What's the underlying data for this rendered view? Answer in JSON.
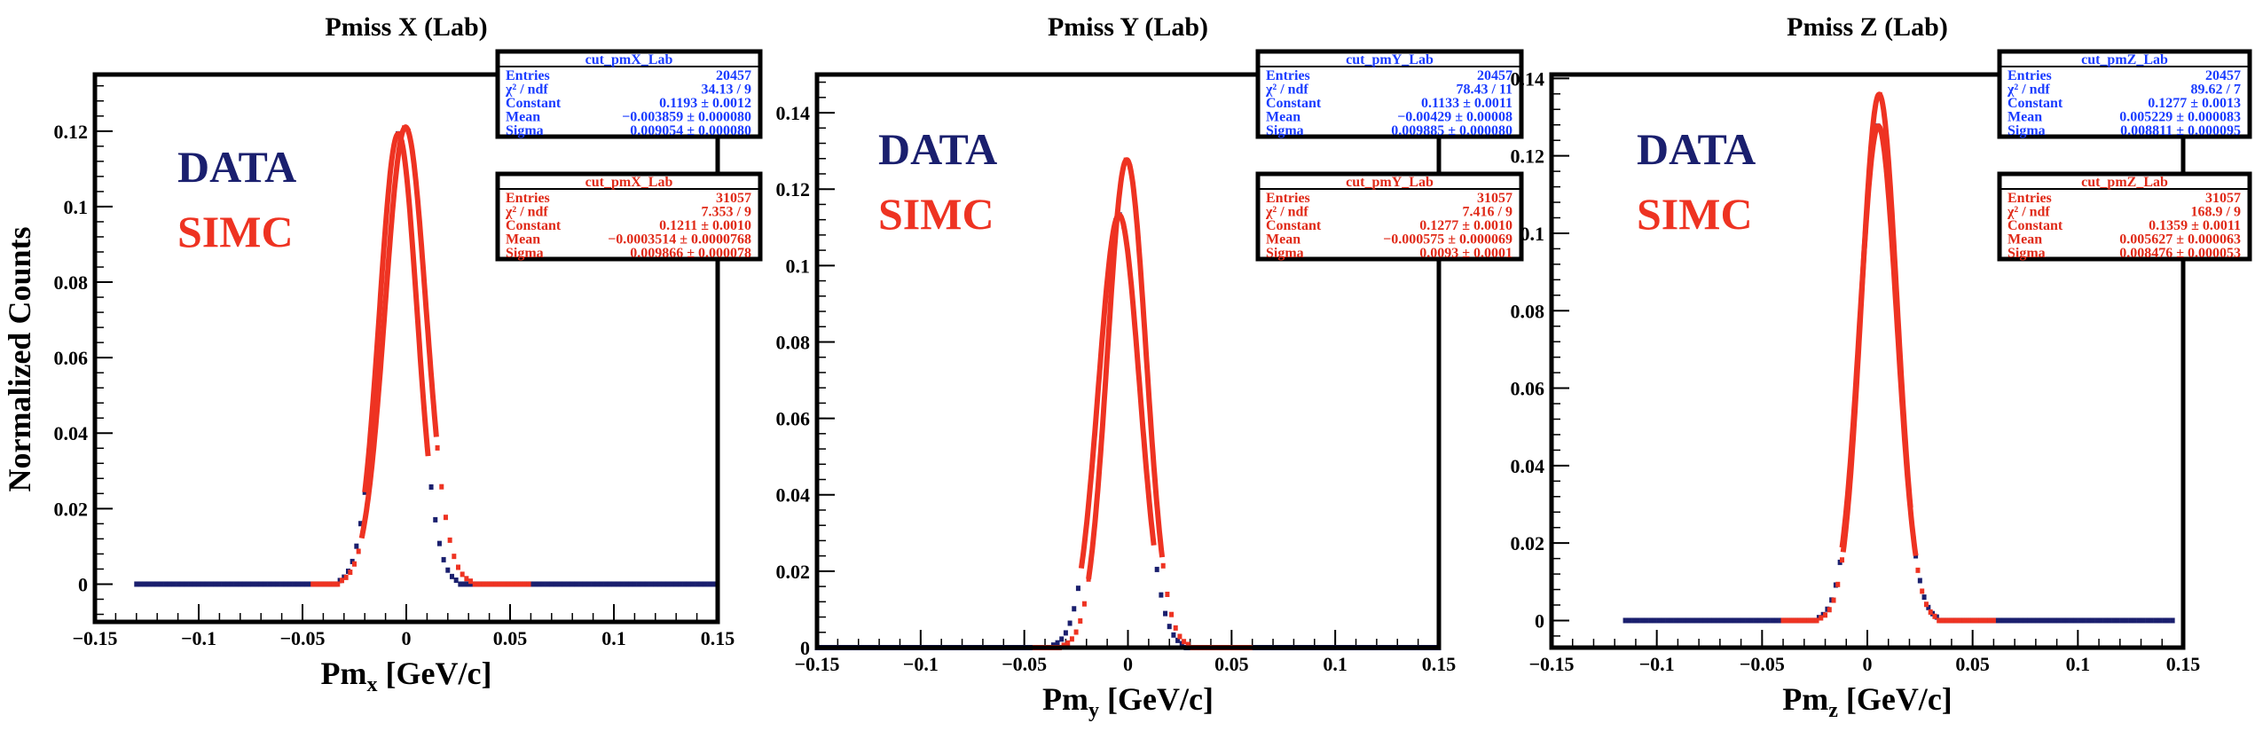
{
  "ylabel": "Normalized Counts",
  "colors": {
    "data": "#1a1f6e",
    "simc": "#ee3322",
    "frame": "#000000"
  },
  "chart_data": [
    {
      "type": "scatter",
      "title": "Pmiss X (Lab)",
      "xlabel_main": "Pm",
      "xlabel_sub": "x",
      "xlabel_unit": "[GeV/c]",
      "xlim": [
        -0.15,
        0.15
      ],
      "ylim": [
        -0.01,
        0.135
      ],
      "xticks": [
        -0.15,
        -0.1,
        -0.05,
        0,
        0.05,
        0.1,
        0.15
      ],
      "xtick_labels": [
        "−0.15",
        "−0.1",
        "−0.05",
        "0",
        "0.05",
        "0.1",
        "0.15"
      ],
      "yticks": [
        0,
        0.02,
        0.04,
        0.06,
        0.08,
        0.1,
        0.12
      ],
      "ytick_labels": [
        "0",
        "0.02",
        "0.04",
        "0.06",
        "0.08",
        "0.1",
        "0.12"
      ],
      "legend": [
        "DATA",
        "SIMC"
      ],
      "series": [
        {
          "name": "DATA",
          "mean": -0.003859,
          "sigma": 0.009054,
          "constant": 0.1193,
          "x_start": -0.13,
          "x_end": 0.15,
          "fit_range": [
            -0.02,
            0.0105
          ]
        },
        {
          "name": "SIMC",
          "mean": -0.0003514,
          "sigma": 0.009866,
          "constant": 0.1211,
          "x_start": -0.045,
          "x_end": 0.06,
          "fit_range": [
            -0.0215,
            0.0145
          ]
        }
      ],
      "stats": [
        {
          "name": "cut_pmX_Lab",
          "rows": [
            {
              "label": "Entries",
              "value": "20457"
            },
            {
              "label": "χ² / ndf",
              "value": "34.13 / 9"
            },
            {
              "label": "Constant",
              "value": "0.1193 ± 0.0012"
            },
            {
              "label": "Mean",
              "value": "−0.003859 ± 0.000080"
            },
            {
              "label": "Sigma",
              "value": "0.009054 ± 0.000080"
            }
          ]
        },
        {
          "name": "cut_pmX_Lab",
          "rows": [
            {
              "label": "Entries",
              "value": "31057"
            },
            {
              "label": "χ² / ndf",
              "value": "7.353 / 9"
            },
            {
              "label": "Constant",
              "value": "0.1211 ± 0.0010"
            },
            {
              "label": "Mean",
              "value": "−0.0003514 ± 0.0000768"
            },
            {
              "label": "Sigma",
              "value": "0.009866 ± 0.000078"
            }
          ]
        }
      ]
    },
    {
      "type": "scatter",
      "title": "Pmiss Y (Lab)",
      "xlabel_main": "Pm",
      "xlabel_sub": "y",
      "xlabel_unit": "[GeV/c]",
      "xlim": [
        -0.15,
        0.15
      ],
      "ylim": [
        0,
        0.15
      ],
      "xticks": [
        -0.15,
        -0.1,
        -0.05,
        0,
        0.05,
        0.1,
        0.15
      ],
      "xtick_labels": [
        "−0.15",
        "−0.1",
        "−0.05",
        "0",
        "0.05",
        "0.1",
        "0.15"
      ],
      "yticks": [
        0,
        0.02,
        0.04,
        0.06,
        0.08,
        0.1,
        0.12,
        0.14
      ],
      "ytick_labels": [
        "0",
        "0.02",
        "0.04",
        "0.06",
        "0.08",
        "0.1",
        "0.12",
        "0.14"
      ],
      "legend": [
        "DATA",
        "SIMC"
      ],
      "series": [
        {
          "name": "DATA",
          "mean": -0.00429,
          "sigma": 0.009885,
          "constant": 0.1133,
          "x_start": -0.15,
          "x_end": 0.15,
          "fit_range": [
            -0.0225,
            0.0125
          ]
        },
        {
          "name": "SIMC",
          "mean": -0.000575,
          "sigma": 0.0093,
          "constant": 0.1277,
          "x_start": -0.045,
          "x_end": 0.06,
          "fit_range": [
            -0.019,
            0.0165
          ]
        }
      ],
      "stats": [
        {
          "name": "cut_pmY_Lab",
          "rows": [
            {
              "label": "Entries",
              "value": "20457"
            },
            {
              "label": "χ² / ndf",
              "value": "78.43 / 11"
            },
            {
              "label": "Constant",
              "value": "0.1133 ± 0.0011"
            },
            {
              "label": "Mean",
              "value": "−0.00429 ± 0.00008"
            },
            {
              "label": "Sigma",
              "value": "0.009885 ± 0.000080"
            }
          ]
        },
        {
          "name": "cut_pmY_Lab",
          "rows": [
            {
              "label": "Entries",
              "value": "31057"
            },
            {
              "label": "χ² / ndf",
              "value": "7.416 / 9"
            },
            {
              "label": "Constant",
              "value": "0.1277 ± 0.0010"
            },
            {
              "label": "Mean",
              "value": "−0.000575 ± 0.000069"
            },
            {
              "label": "Sigma",
              "value": "0.0093 ± 0.0001"
            }
          ]
        }
      ]
    },
    {
      "type": "scatter",
      "title": "Pmiss Z (Lab)",
      "xlabel_main": "Pm",
      "xlabel_sub": "z",
      "xlabel_unit": "[GeV/c]",
      "xlim": [
        -0.15,
        0.15
      ],
      "ylim": [
        -0.007,
        0.141
      ],
      "xticks": [
        -0.15,
        -0.1,
        -0.05,
        0,
        0.05,
        0.1,
        0.15
      ],
      "xtick_labels": [
        "−0.15",
        "−0.1",
        "−0.05",
        "0",
        "0.05",
        "0.1",
        "0.15"
      ],
      "yticks": [
        0,
        0.02,
        0.04,
        0.06,
        0.08,
        0.1,
        0.12,
        0.14
      ],
      "ytick_labels": [
        "0",
        "0.02",
        "0.04",
        "0.06",
        "0.08",
        "0.1",
        "0.12",
        "0.14"
      ],
      "legend": [
        "DATA",
        "SIMC"
      ],
      "series": [
        {
          "name": "DATA",
          "mean": 0.005229,
          "sigma": 0.008811,
          "constant": 0.1277,
          "x_start": -0.115,
          "x_end": 0.145,
          "fit_range": [
            -0.012,
            0.023
          ]
        },
        {
          "name": "SIMC",
          "mean": 0.005627,
          "sigma": 0.008476,
          "constant": 0.1359,
          "x_start": -0.04,
          "x_end": 0.06,
          "fit_range": [
            -0.0115,
            0.0205
          ]
        }
      ],
      "stats": [
        {
          "name": "cut_pmZ_Lab",
          "rows": [
            {
              "label": "Entries",
              "value": "20457"
            },
            {
              "label": "χ² / ndf",
              "value": "89.62 / 7"
            },
            {
              "label": "Constant",
              "value": "0.1277 ± 0.0013"
            },
            {
              "label": "Mean",
              "value": "0.005229 ± 0.000083"
            },
            {
              "label": "Sigma",
              "value": "0.008811 ± 0.000095"
            }
          ]
        },
        {
          "name": "cut_pmZ_Lab",
          "rows": [
            {
              "label": "Entries",
              "value": "31057"
            },
            {
              "label": "χ² / ndf",
              "value": "168.9 / 9"
            },
            {
              "label": "Constant",
              "value": "0.1359 ± 0.0011"
            },
            {
              "label": "Mean",
              "value": "0.005627 ± 0.000063"
            },
            {
              "label": "Sigma",
              "value": "0.008476 ± 0.000053"
            }
          ]
        }
      ]
    }
  ]
}
